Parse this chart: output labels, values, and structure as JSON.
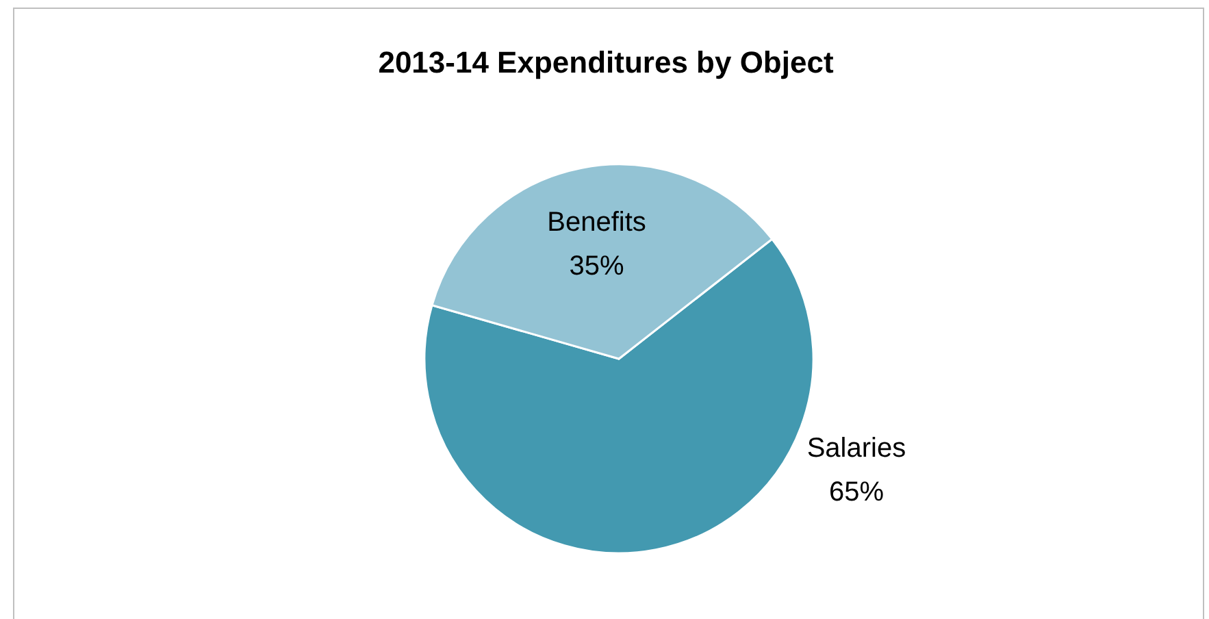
{
  "chart_data": {
    "type": "pie",
    "title": "2013-14 Expenditures by Object",
    "categories": [
      "Salaries",
      "Benefits"
    ],
    "values": [
      65,
      35
    ],
    "colors": [
      "#4399b0",
      "#93c3d4"
    ],
    "value_labels": [
      "65%",
      "35%"
    ]
  }
}
